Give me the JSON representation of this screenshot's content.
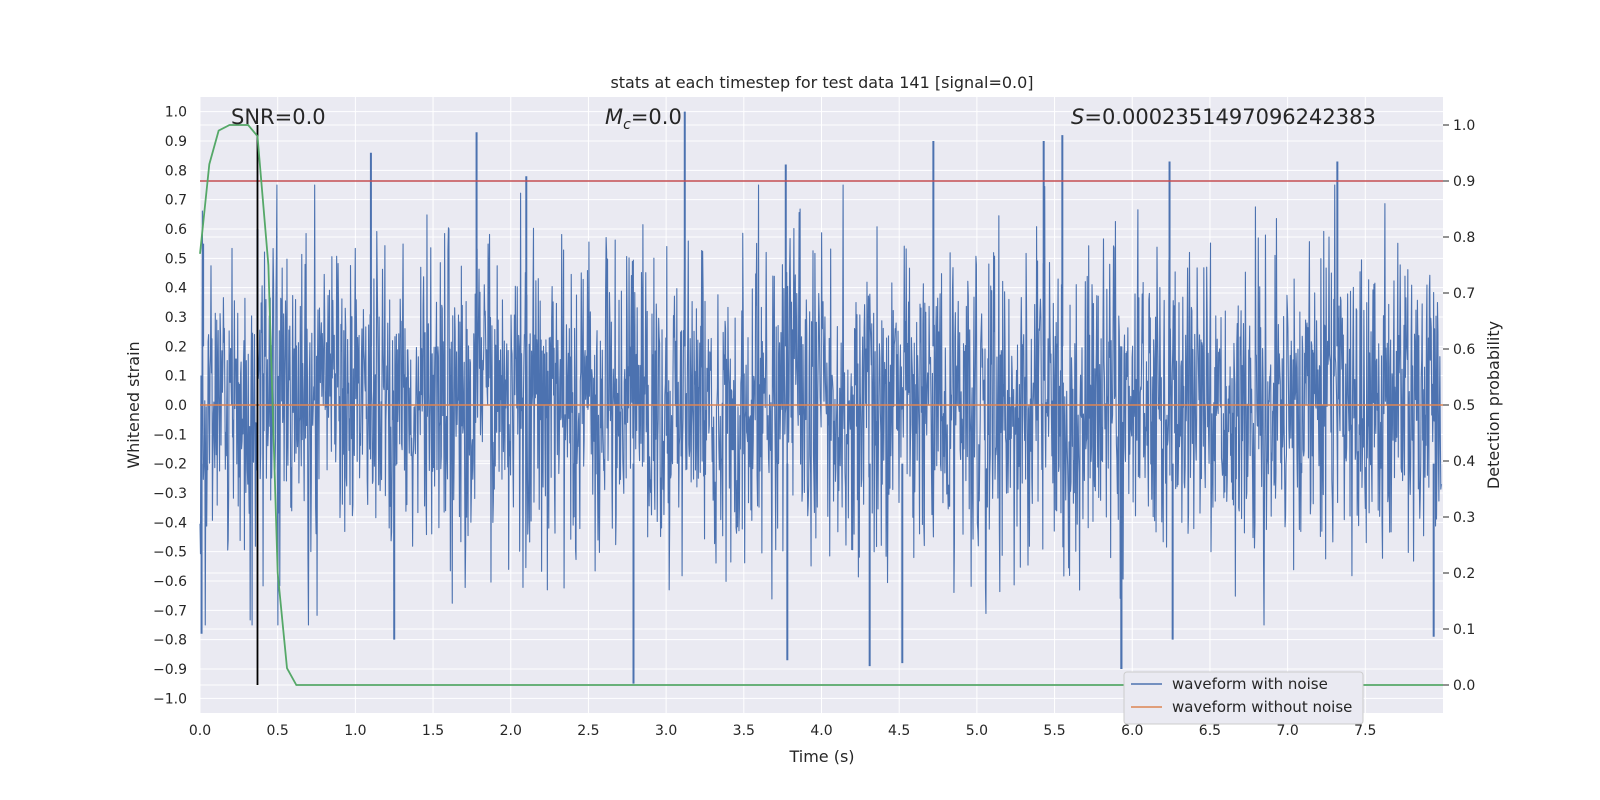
{
  "chart_data": {
    "type": "line",
    "title": "stats at each timestep for test data 141 [signal=0.0]",
    "xlabel": "Time (s)",
    "ylabel_left": "Whitened strain",
    "ylabel_right": "Detection probability",
    "xlim": [
      0.0,
      8.0
    ],
    "ylim_left": [
      -1.05,
      1.05
    ],
    "ylim_right": [
      -0.05,
      1.05
    ],
    "x_ticks": [
      "0.0",
      "0.5",
      "1.0",
      "1.5",
      "2.0",
      "2.5",
      "3.0",
      "3.5",
      "4.0",
      "4.5",
      "5.0",
      "5.5",
      "6.0",
      "6.5",
      "7.0",
      "7.5"
    ],
    "y_ticks_left": [
      "1.0",
      "0.9",
      "0.8",
      "0.7",
      "0.6",
      "0.5",
      "0.4",
      "0.3",
      "0.2",
      "0.1",
      "0.0",
      "-0.1",
      "-0.2",
      "-0.3",
      "-0.4",
      "-0.5",
      "-0.6",
      "-0.7",
      "-0.8",
      "-0.9",
      "-1.0"
    ],
    "y_ticks_right": [
      "1.0",
      "0.9",
      "0.8",
      "0.7",
      "0.6",
      "0.5",
      "0.4",
      "0.3",
      "0.2",
      "0.1",
      "0.0"
    ],
    "annotations": {
      "snr": "SNR=0.0",
      "mc_symbol": "M",
      "mc_sub": "c",
      "mc_value": "=0.0",
      "s_symbol": "S",
      "s_value": "=0.000235149709624238​3"
    },
    "threshold_right": 0.9,
    "marker_time": 0.37,
    "series": [
      {
        "name": "waveform with noise",
        "color": "#4c72b0",
        "axis": "left",
        "description": "whitened noisy strain, approx. uniform noise between -0.45 and +0.45 with spikes up to 1.0 and down to -0.95",
        "noise_seed": 141,
        "spike_times": [
          0.02,
          0.37,
          1.1,
          1.78,
          2.1,
          3.12,
          3.77,
          4.72,
          5.43,
          5.55,
          5.93,
          6.24,
          7.32
        ],
        "spike_values": [
          0.55,
          0.6,
          0.86,
          0.93,
          0.78,
          1.0,
          0.82,
          0.9,
          0.9,
          0.92,
          -0.9,
          0.83,
          0.83
        ],
        "neg_spike_times": [
          0.01,
          1.25,
          2.79,
          3.78,
          4.31,
          4.52,
          5.93,
          6.26,
          7.94
        ],
        "neg_spike_values": [
          -0.78,
          -0.8,
          -0.95,
          -0.87,
          -0.89,
          -0.88,
          -0.9,
          -0.8,
          -0.79
        ]
      },
      {
        "name": "waveform without noise",
        "color": "#dd8452",
        "axis": "left",
        "values_constant": 0.0
      },
      {
        "name": "detection probability",
        "color": "#55a868",
        "axis": "right",
        "x": [
          0.0,
          0.06,
          0.12,
          0.19,
          0.25,
          0.31,
          0.37,
          0.44,
          0.5,
          0.56,
          0.62,
          0.69,
          1.0,
          2.0,
          3.0,
          4.0,
          5.0,
          6.0,
          7.0,
          8.0
        ],
        "y": [
          0.77,
          0.93,
          0.99,
          1.0,
          1.0,
          1.0,
          0.98,
          0.75,
          0.2,
          0.03,
          0.0,
          0.0,
          0.0,
          0.0,
          0.0,
          0.0,
          0.0,
          0.0,
          0.0,
          0.0
        ]
      }
    ],
    "legend": {
      "placement": "bottom-right",
      "entries": [
        {
          "label": "waveform with noise",
          "color": "#4c72b0"
        },
        {
          "label": "waveform without noise",
          "color": "#dd8452"
        }
      ]
    },
    "colors": {
      "plot_bg": "#eaeaf2",
      "grid": "#ffffff",
      "threshold": "#c44e52",
      "marker": "#000000"
    }
  }
}
